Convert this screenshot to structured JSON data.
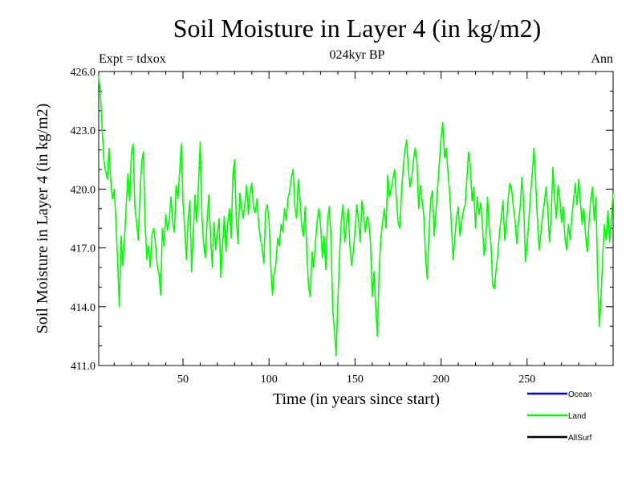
{
  "chart_data": {
    "type": "line",
    "title": "Soil Moisture in Layer 4 (in kg/m2)",
    "subtitle": "024kyr BP",
    "left_label": "Expt = tdxox",
    "right_label": "Ann",
    "xlabel": "Time (in years since start)",
    "ylabel": "Soil Moisture in Layer 4 (in kg/m2)",
    "xlim": [
      1,
      300
    ],
    "ylim": [
      411.0,
      426.0
    ],
    "xticks": [
      50,
      100,
      150,
      200,
      250
    ],
    "xtick_labels": [
      "50",
      "100",
      "150",
      "200",
      "250"
    ],
    "yticks": [
      411,
      414,
      417,
      420,
      423,
      426
    ],
    "ytick_labels": [
      "411.0",
      "414.0",
      "417.0",
      "420.0",
      "423.0",
      "426.0"
    ],
    "legend": {
      "position": "bottom-right",
      "entries": [
        {
          "name": "Ocean",
          "color": "#0000cc"
        },
        {
          "name": "Land",
          "color": "#00ff00"
        },
        {
          "name": "AllSurf",
          "color": "#000000"
        }
      ]
    },
    "series": [
      {
        "name": "Land",
        "color": "#00ff00",
        "x": [
          1,
          2,
          3,
          4,
          5,
          6,
          7,
          8,
          9,
          10,
          11,
          12,
          13,
          14,
          15,
          16,
          17,
          18,
          19,
          20,
          21,
          22,
          23,
          24,
          25,
          26,
          27,
          28,
          29,
          30,
          31,
          32,
          33,
          34,
          35,
          36,
          37,
          38,
          39,
          40,
          41,
          42,
          43,
          44,
          45,
          46,
          47,
          48,
          49,
          50,
          51,
          52,
          53,
          54,
          55,
          56,
          57,
          58,
          59,
          60,
          61,
          62,
          63,
          64,
          65,
          66,
          67,
          68,
          69,
          70,
          71,
          72,
          73,
          74,
          75,
          76,
          77,
          78,
          79,
          80,
          81,
          82,
          83,
          84,
          85,
          86,
          87,
          88,
          89,
          90,
          91,
          92,
          93,
          94,
          95,
          96,
          97,
          98,
          99,
          100,
          101,
          102,
          103,
          104,
          105,
          106,
          107,
          108,
          109,
          110,
          111,
          112,
          113,
          114,
          115,
          116,
          117,
          118,
          119,
          120,
          121,
          122,
          123,
          124,
          125,
          126,
          127,
          128,
          129,
          130,
          131,
          132,
          133,
          134,
          135,
          136,
          137,
          138,
          139,
          140,
          141,
          142,
          143,
          144,
          145,
          146,
          147,
          148,
          149,
          150,
          151,
          152,
          153,
          154,
          155,
          156,
          157,
          158,
          159,
          160,
          161,
          162,
          163,
          164,
          165,
          166,
          167,
          168,
          169,
          170,
          171,
          172,
          173,
          174,
          175,
          176,
          177,
          178,
          179,
          180,
          181,
          182,
          183,
          184,
          185,
          186,
          187,
          188,
          189,
          190,
          191,
          192,
          193,
          194,
          195,
          196,
          197,
          198,
          199,
          200,
          201,
          202,
          203,
          204,
          205,
          206,
          207,
          208,
          209,
          210,
          211,
          212,
          213,
          214,
          215,
          216,
          217,
          218,
          219,
          220,
          221,
          222,
          223,
          224,
          225,
          226,
          227,
          228,
          229,
          230,
          231,
          232,
          233,
          234,
          235,
          236,
          237,
          238,
          239,
          240,
          241,
          242,
          243,
          244,
          245,
          246,
          247,
          248,
          249,
          250,
          251,
          252,
          253,
          254,
          255,
          256,
          257,
          258,
          259,
          260,
          261,
          262,
          263,
          264,
          265,
          266,
          267,
          268,
          269,
          270,
          271,
          272,
          273,
          274,
          275,
          276,
          277,
          278,
          279,
          280,
          281,
          282,
          283,
          284,
          285,
          286,
          287,
          288,
          289,
          290,
          291,
          292,
          293,
          294,
          295,
          296,
          297,
          298,
          299,
          300
        ],
        "values": [
          425.8,
          424.8,
          423.1,
          421.5,
          420.9,
          420.5,
          422.1,
          420.4,
          419.5,
          420.0,
          418.4,
          416.3,
          414.0,
          417.6,
          416.1,
          417.5,
          419.2,
          420.8,
          419.4,
          421.8,
          422.3,
          419.1,
          418.3,
          417.4,
          419.8,
          421.4,
          421.9,
          418.2,
          416.4,
          417.1,
          416.0,
          417.7,
          418.0,
          417.2,
          416.1,
          415.7,
          414.6,
          418.0,
          417.1,
          418.7,
          417.9,
          418.4,
          419.6,
          418.3,
          417.8,
          420.2,
          419.5,
          420.8,
          422.3,
          419.3,
          418.0,
          416.4,
          418.5,
          419.4,
          415.8,
          417.8,
          419.7,
          418.3,
          420.2,
          422.4,
          418.6,
          417.2,
          416.5,
          418.4,
          419.7,
          417.6,
          416.0,
          418.3,
          416.9,
          417.7,
          418.5,
          415.5,
          417.1,
          418.6,
          416.8,
          418.3,
          419.0,
          417.5,
          420.7,
          421.5,
          418.4,
          417.2,
          419.8,
          419.1,
          418.5,
          419.3,
          420.2,
          418.7,
          419.8,
          420.3,
          419.0,
          418.8,
          419.5,
          418.2,
          417.5,
          417.0,
          416.2,
          418.9,
          419.2,
          418.4,
          416.1,
          414.6,
          415.7,
          416.2,
          417.5,
          417.1,
          418.2,
          417.8,
          419.0,
          418.4,
          419.5,
          419.9,
          420.6,
          421.0,
          419.1,
          418.5,
          420.5,
          419.5,
          418.1,
          417.6,
          419.1,
          416.7,
          415.0,
          414.5,
          416.8,
          416.0,
          417.3,
          418.4,
          419.0,
          418.1,
          416.5,
          417.6,
          415.9,
          418.4,
          419.1,
          417.6,
          413.9,
          412.8,
          411.5,
          414.2,
          416.6,
          418.4,
          419.2,
          417.3,
          418.2,
          419.0,
          417.1,
          416.1,
          416.8,
          417.9,
          419.2,
          418.4,
          417.3,
          419.4,
          418.7,
          417.8,
          418.6,
          418.4,
          417.2,
          414.5,
          415.8,
          414.0,
          412.5,
          415.8,
          417.5,
          418.3,
          419.0,
          418.0,
          420.7,
          419.6,
          420.0,
          420.5,
          421.0,
          419.6,
          418.3,
          418.0,
          419.8,
          421.1,
          422.0,
          422.5,
          421.0,
          420.1,
          420.6,
          421.5,
          422.1,
          421.3,
          419.0,
          420.2,
          419.4,
          418.6,
          416.5,
          415.4,
          417.8,
          419.5,
          419.9,
          417.6,
          418.8,
          420.1,
          421.3,
          422.6,
          423.4,
          421.6,
          422.1,
          420.9,
          419.8,
          418.2,
          416.4,
          417.5,
          418.6,
          419.1,
          417.6,
          418.3,
          418.9,
          419.2,
          420.5,
          421.9,
          421.2,
          419.4,
          420.1,
          418.0,
          419.6,
          418.7,
          419.3,
          418.2,
          416.6,
          417.3,
          419.6,
          418.0,
          417.2,
          415.1,
          414.9,
          415.9,
          416.7,
          417.8,
          418.6,
          419.4,
          417.4,
          418.2,
          419.5,
          420.3,
          420.0,
          419.1,
          418.4,
          417.2,
          418.3,
          419.1,
          420.6,
          419.3,
          416.3,
          417.1,
          418.4,
          419.7,
          420.8,
          422.1,
          420.3,
          418.5,
          416.9,
          417.8,
          418.6,
          419.3,
          420.1,
          419.0,
          417.3,
          418.7,
          421.1,
          419.5,
          418.5,
          420.2,
          419.6,
          418.3,
          419.1,
          417.5,
          416.9,
          418.2,
          417.4,
          418.6,
          419.4,
          420.3,
          419.2,
          420.5,
          419.3,
          418.2,
          419.0,
          417.6,
          416.8,
          418.3,
          419.5,
          420.1,
          418.4,
          419.6,
          415.6,
          413.0,
          414.5,
          416.7,
          418.2,
          417.4,
          418.9,
          417.3,
          418.5,
          419.8
        ]
      }
    ]
  }
}
